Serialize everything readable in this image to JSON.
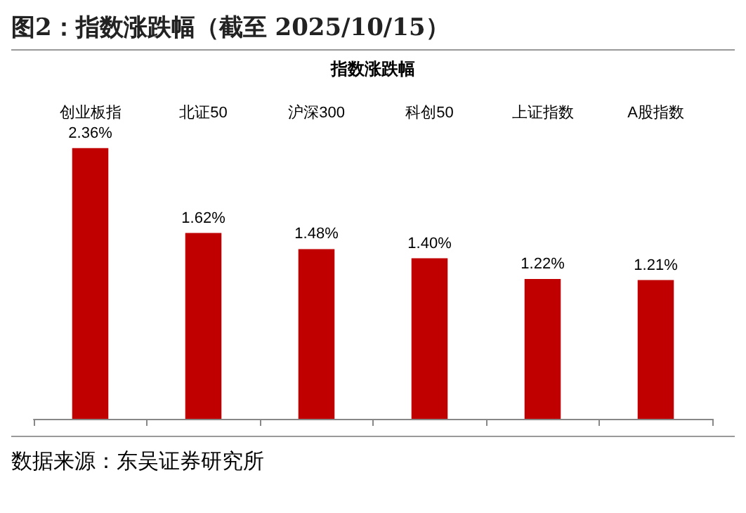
{
  "chart_data": {
    "type": "bar",
    "title": "图2：指数涨跌幅（截至 2025/10/15）",
    "subtitle": "指数涨跌幅",
    "categories": [
      "创业板指",
      "北证50",
      "沪深300",
      "科创50",
      "上证指数",
      "A股指数"
    ],
    "values": [
      2.36,
      1.62,
      1.48,
      1.4,
      1.22,
      1.21
    ],
    "value_labels": [
      "2.36%",
      "1.62%",
      "1.48%",
      "1.40%",
      "1.22%",
      "1.21%"
    ],
    "color": "#c00000",
    "annotations": [
      "数据来源：东吴证券研究所"
    ]
  }
}
